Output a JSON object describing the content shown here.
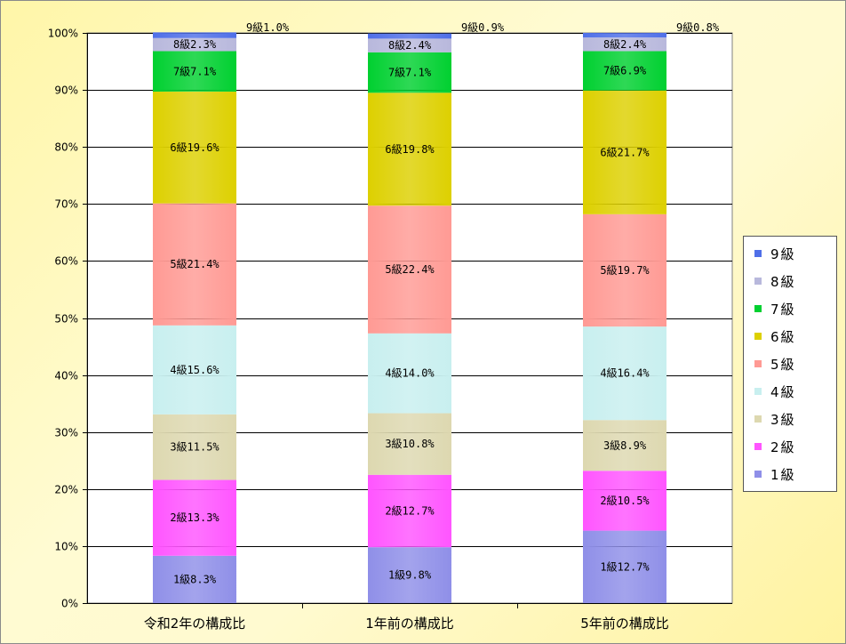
{
  "chart_data": {
    "type": "bar",
    "stacked": true,
    "percent_stacked": true,
    "categories": [
      "令和2年の構成比",
      "1年前の構成比",
      "5年前の構成比"
    ],
    "ylim": [
      0,
      100
    ],
    "yticks": [
      "0%",
      "10%",
      "20%",
      "30%",
      "40%",
      "50%",
      "60%",
      "70%",
      "80%",
      "90%",
      "100%"
    ],
    "grid": true,
    "legend_position": "right",
    "series": [
      {
        "name": "1級",
        "values": [
          8.3,
          9.8,
          12.7
        ],
        "color": "#8f8fe8",
        "labels": [
          "1級8.3%",
          "1級9.8%",
          "1級12.7%"
        ]
      },
      {
        "name": "2級",
        "values": [
          13.3,
          12.7,
          10.5
        ],
        "color": "#ff55ff",
        "labels": [
          "2級13.3%",
          "2級12.7%",
          "2級10.5%"
        ]
      },
      {
        "name": "3級",
        "values": [
          11.5,
          10.8,
          8.9
        ],
        "color": "#ddd8b0",
        "labels": [
          "3級11.5%",
          "3級10.8%",
          "3級8.9%"
        ]
      },
      {
        "name": "4級",
        "values": [
          15.6,
          14.0,
          16.4
        ],
        "color": "#c8efef",
        "labels": [
          "4級15.6%",
          "4級14.0%",
          "4級16.4%"
        ]
      },
      {
        "name": "5級",
        "values": [
          21.4,
          22.4,
          19.7
        ],
        "color": "#ff9a94",
        "labels": [
          "5級21.4%",
          "5級22.4%",
          "5級19.7%"
        ]
      },
      {
        "name": "6級",
        "values": [
          19.6,
          19.8,
          21.7
        ],
        "color": "#ddd000",
        "labels": [
          "6級19.6%",
          "6級19.8%",
          "6級21.7%"
        ]
      },
      {
        "name": "7級",
        "values": [
          7.1,
          7.1,
          6.9
        ],
        "color": "#00d030",
        "labels": [
          "7級7.1%",
          "7級7.1%",
          "7級6.9%"
        ]
      },
      {
        "name": "8級",
        "values": [
          2.3,
          2.4,
          2.4
        ],
        "color": "#b8b8dc",
        "labels": [
          "8級2.3%",
          "8級2.4%",
          "8級2.4%"
        ]
      },
      {
        "name": "9級",
        "values": [
          1.0,
          0.9,
          0.8
        ],
        "color": "#4f6fe8",
        "labels": [
          "9級1.0%",
          "9級0.9%",
          "9級0.8%"
        ]
      }
    ]
  }
}
